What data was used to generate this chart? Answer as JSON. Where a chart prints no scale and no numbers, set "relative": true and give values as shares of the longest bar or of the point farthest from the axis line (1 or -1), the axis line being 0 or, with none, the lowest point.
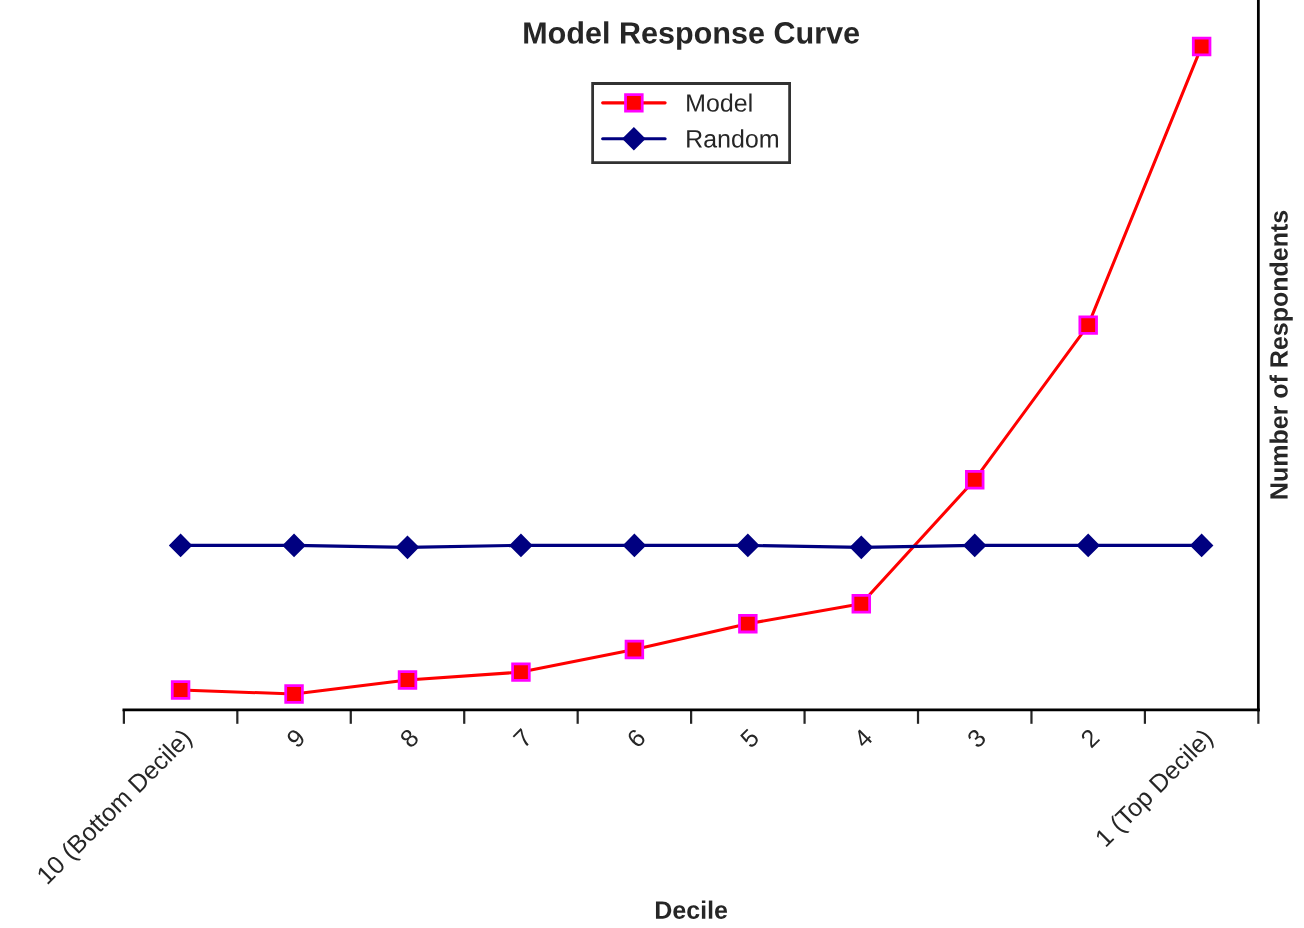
{
  "chart_data": {
    "type": "line",
    "title": "Model Response Curve",
    "xlabel": "Decile",
    "ylabel": "Number of Respondents",
    "categories": [
      "10 (Bottom Decile)",
      "9",
      "8",
      "7",
      "6",
      "5",
      "4",
      "3",
      "2",
      "1 (Top Decile)"
    ],
    "relative": true,
    "legend": "top",
    "grid": false,
    "series": [
      {
        "name": "Model",
        "color": "#ff0000",
        "marker": "square",
        "values": [
          0.03,
          0.024,
          0.045,
          0.057,
          0.091,
          0.13,
          0.16,
          0.347,
          0.58,
          1
        ]
      },
      {
        "name": "Random",
        "color": "#000080",
        "marker": "diamond",
        "values": [
          0.248,
          0.248,
          0.245,
          0.248,
          0.248,
          0.248,
          0.245,
          0.248,
          0.248,
          0.248
        ]
      }
    ]
  }
}
